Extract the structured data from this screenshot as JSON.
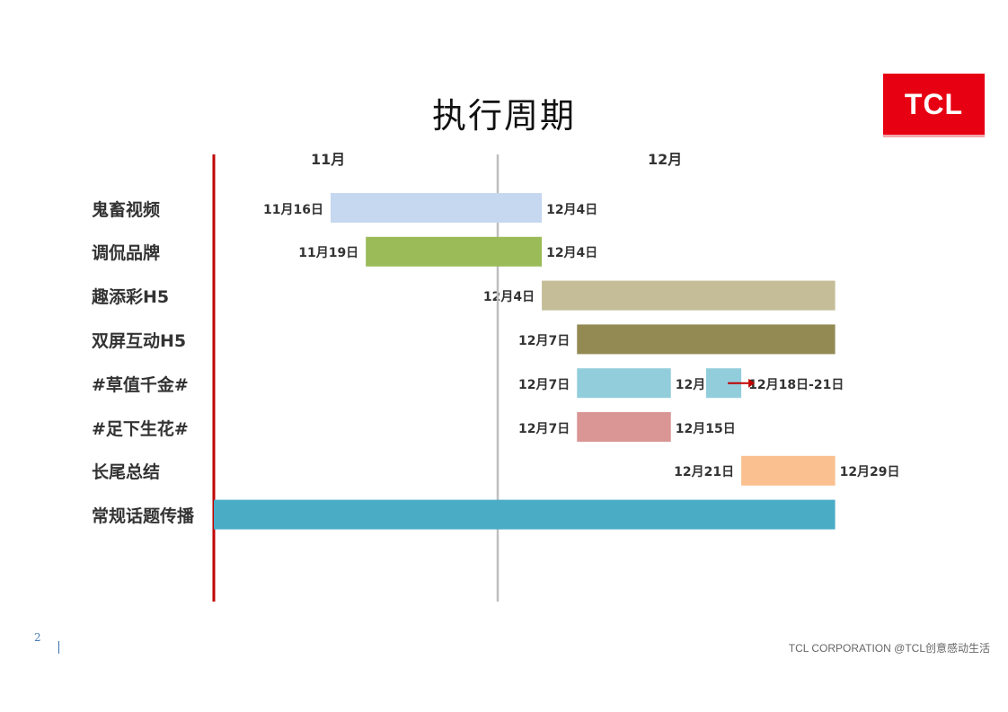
{
  "title": "执行周期",
  "logo": {
    "text": "TCL",
    "color": "#e60012"
  },
  "footer": {
    "page_number": "2",
    "text": "TCL CORPORATION @TCL创意感动生活"
  },
  "chart_data": {
    "type": "gantt",
    "months": [
      "11月",
      "12月"
    ],
    "tasks": [
      {
        "label": "鬼畜视频",
        "segments": [
          {
            "start": "11-16",
            "end": "12-04",
            "start_label": "11月16日",
            "end_label": "12月4日",
            "color": "#c5d8ef"
          }
        ]
      },
      {
        "label": "调侃品牌",
        "segments": [
          {
            "start": "11-19",
            "end": "12-04",
            "start_label": "11月19日",
            "end_label": "12月4日",
            "color": "#9bbb59"
          }
        ]
      },
      {
        "label": "趣添彩H5",
        "segments": [
          {
            "start": "12-04",
            "end": "12-29",
            "start_label": "12月4日",
            "end_label": "",
            "color": "#c4bd97"
          }
        ]
      },
      {
        "label": "双屏互动H5",
        "segments": [
          {
            "start": "12-07",
            "end": "12-29",
            "start_label": "12月7日",
            "end_label": "",
            "color": "#938953"
          }
        ]
      },
      {
        "label": "#草值千金#",
        "segments": [
          {
            "start": "12-07",
            "end": "12-15",
            "start_label": "12月7日",
            "end_label": "12月15日",
            "color": "#92cddc"
          },
          {
            "start": "12-18",
            "end": "12-21",
            "start_label": "",
            "end_label": "12月18日-21日",
            "color": "#92cddc",
            "arrow": true
          }
        ]
      },
      {
        "label": "#足下生花#",
        "segments": [
          {
            "start": "12-07",
            "end": "12-15",
            "start_label": "12月7日",
            "end_label": "12月15日",
            "color": "#d99694"
          }
        ]
      },
      {
        "label": "长尾总结",
        "segments": [
          {
            "start": "12-21",
            "end": "12-29",
            "start_label": "12月21日",
            "end_label": "12月29日",
            "color": "#fac08f"
          }
        ]
      },
      {
        "label": "常规话题传播",
        "segments": [
          {
            "start": "11-06",
            "end": "12-29",
            "start_label": "",
            "end_label": "",
            "color": "#4bacc6"
          }
        ]
      }
    ],
    "colors": {
      "start_line": "#c00000",
      "month_divider": "#bfbfbf",
      "arrow": "#c00000"
    }
  }
}
